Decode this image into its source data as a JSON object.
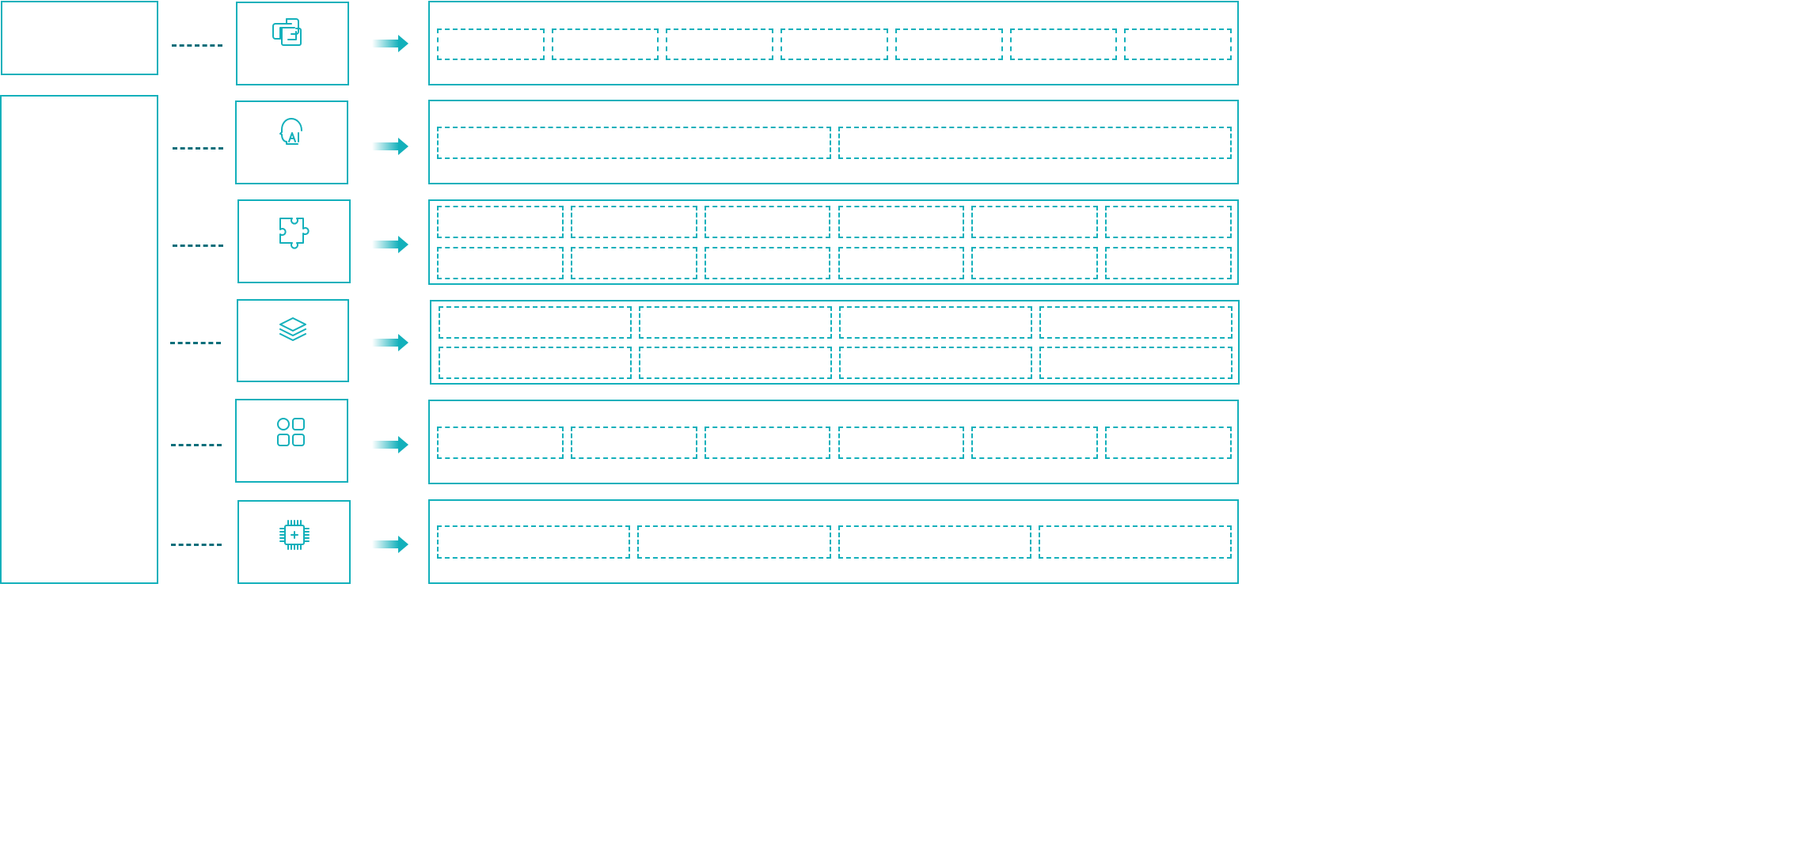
{
  "colors": {
    "accent": "#13b0bb",
    "connector": "#0a6e7a"
  },
  "rows": [
    {
      "icon": "python-icon"
    },
    {
      "icon": "ai-head-icon"
    },
    {
      "icon": "puzzle-icon"
    },
    {
      "icon": "layers-icon"
    },
    {
      "icon": "apps-grid-icon"
    },
    {
      "icon": "chip-icon"
    }
  ]
}
